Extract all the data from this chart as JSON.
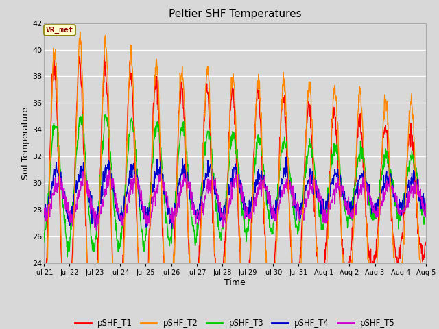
{
  "title": "Peltier SHF Temperatures",
  "xlabel": "Time",
  "ylabel": "Soil Temperature",
  "ylim": [
    24,
    42
  ],
  "yticks": [
    24,
    26,
    28,
    30,
    32,
    34,
    36,
    38,
    40,
    42
  ],
  "background_color": "#d8d8d8",
  "plot_bg_color": "#d8d8d8",
  "grid_color": "#ffffff",
  "annotation_text": "VR_met",
  "annotation_bg": "#ffffcc",
  "annotation_border": "#8B8000",
  "annotation_text_color": "#8B0000",
  "series_colors": {
    "pSHF_T1": "#ff0000",
    "pSHF_T2": "#ff8800",
    "pSHF_T3": "#00cc00",
    "pSHF_T4": "#0000cc",
    "pSHF_T5": "#cc00cc"
  },
  "x_tick_labels": [
    "Jul 21",
    "Jul 22",
    "Jul 23",
    "Jul 24",
    "Jul 25",
    "Jul 26",
    "Jul 27",
    "Jul 28",
    "Jul 29",
    "Jul 30",
    "Jul 31",
    "Aug 1",
    "Aug 2",
    "Aug 3",
    "Aug 4",
    "Aug 5"
  ],
  "num_days": 16,
  "n_points": 1152
}
